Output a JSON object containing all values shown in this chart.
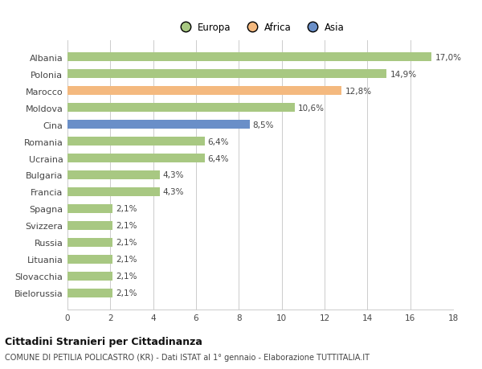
{
  "categories": [
    "Albania",
    "Polonia",
    "Marocco",
    "Moldova",
    "Cina",
    "Romania",
    "Ucraina",
    "Bulgaria",
    "Francia",
    "Spagna",
    "Svizzera",
    "Russia",
    "Lituania",
    "Slovacchia",
    "Bielorussia"
  ],
  "values": [
    17.0,
    14.9,
    12.8,
    10.6,
    8.5,
    6.4,
    6.4,
    4.3,
    4.3,
    2.1,
    2.1,
    2.1,
    2.1,
    2.1,
    2.1
  ],
  "continents": [
    "Europa",
    "Europa",
    "Africa",
    "Europa",
    "Asia",
    "Europa",
    "Europa",
    "Europa",
    "Europa",
    "Europa",
    "Europa",
    "Europa",
    "Europa",
    "Europa",
    "Europa"
  ],
  "colors": {
    "Europa": "#a8c882",
    "Africa": "#f4b97f",
    "Asia": "#6a8fc8"
  },
  "labels": [
    "17,0%",
    "14,9%",
    "12,8%",
    "10,6%",
    "8,5%",
    "6,4%",
    "6,4%",
    "4,3%",
    "4,3%",
    "2,1%",
    "2,1%",
    "2,1%",
    "2,1%",
    "2,1%",
    "2,1%"
  ],
  "xlim": [
    0,
    18
  ],
  "xticks": [
    0,
    2,
    4,
    6,
    8,
    10,
    12,
    14,
    16,
    18
  ],
  "title": "Cittadini Stranieri per Cittadinanza",
  "subtitle": "COMUNE DI PETILIA POLICASTRO (KR) - Dati ISTAT al 1° gennaio - Elaborazione TUTTITALIA.IT",
  "legend_labels": [
    "Europa",
    "Africa",
    "Asia"
  ],
  "legend_colors": [
    "#a8c882",
    "#f4b97f",
    "#6a8fc8"
  ],
  "background_color": "#ffffff",
  "grid_color": "#cccccc"
}
